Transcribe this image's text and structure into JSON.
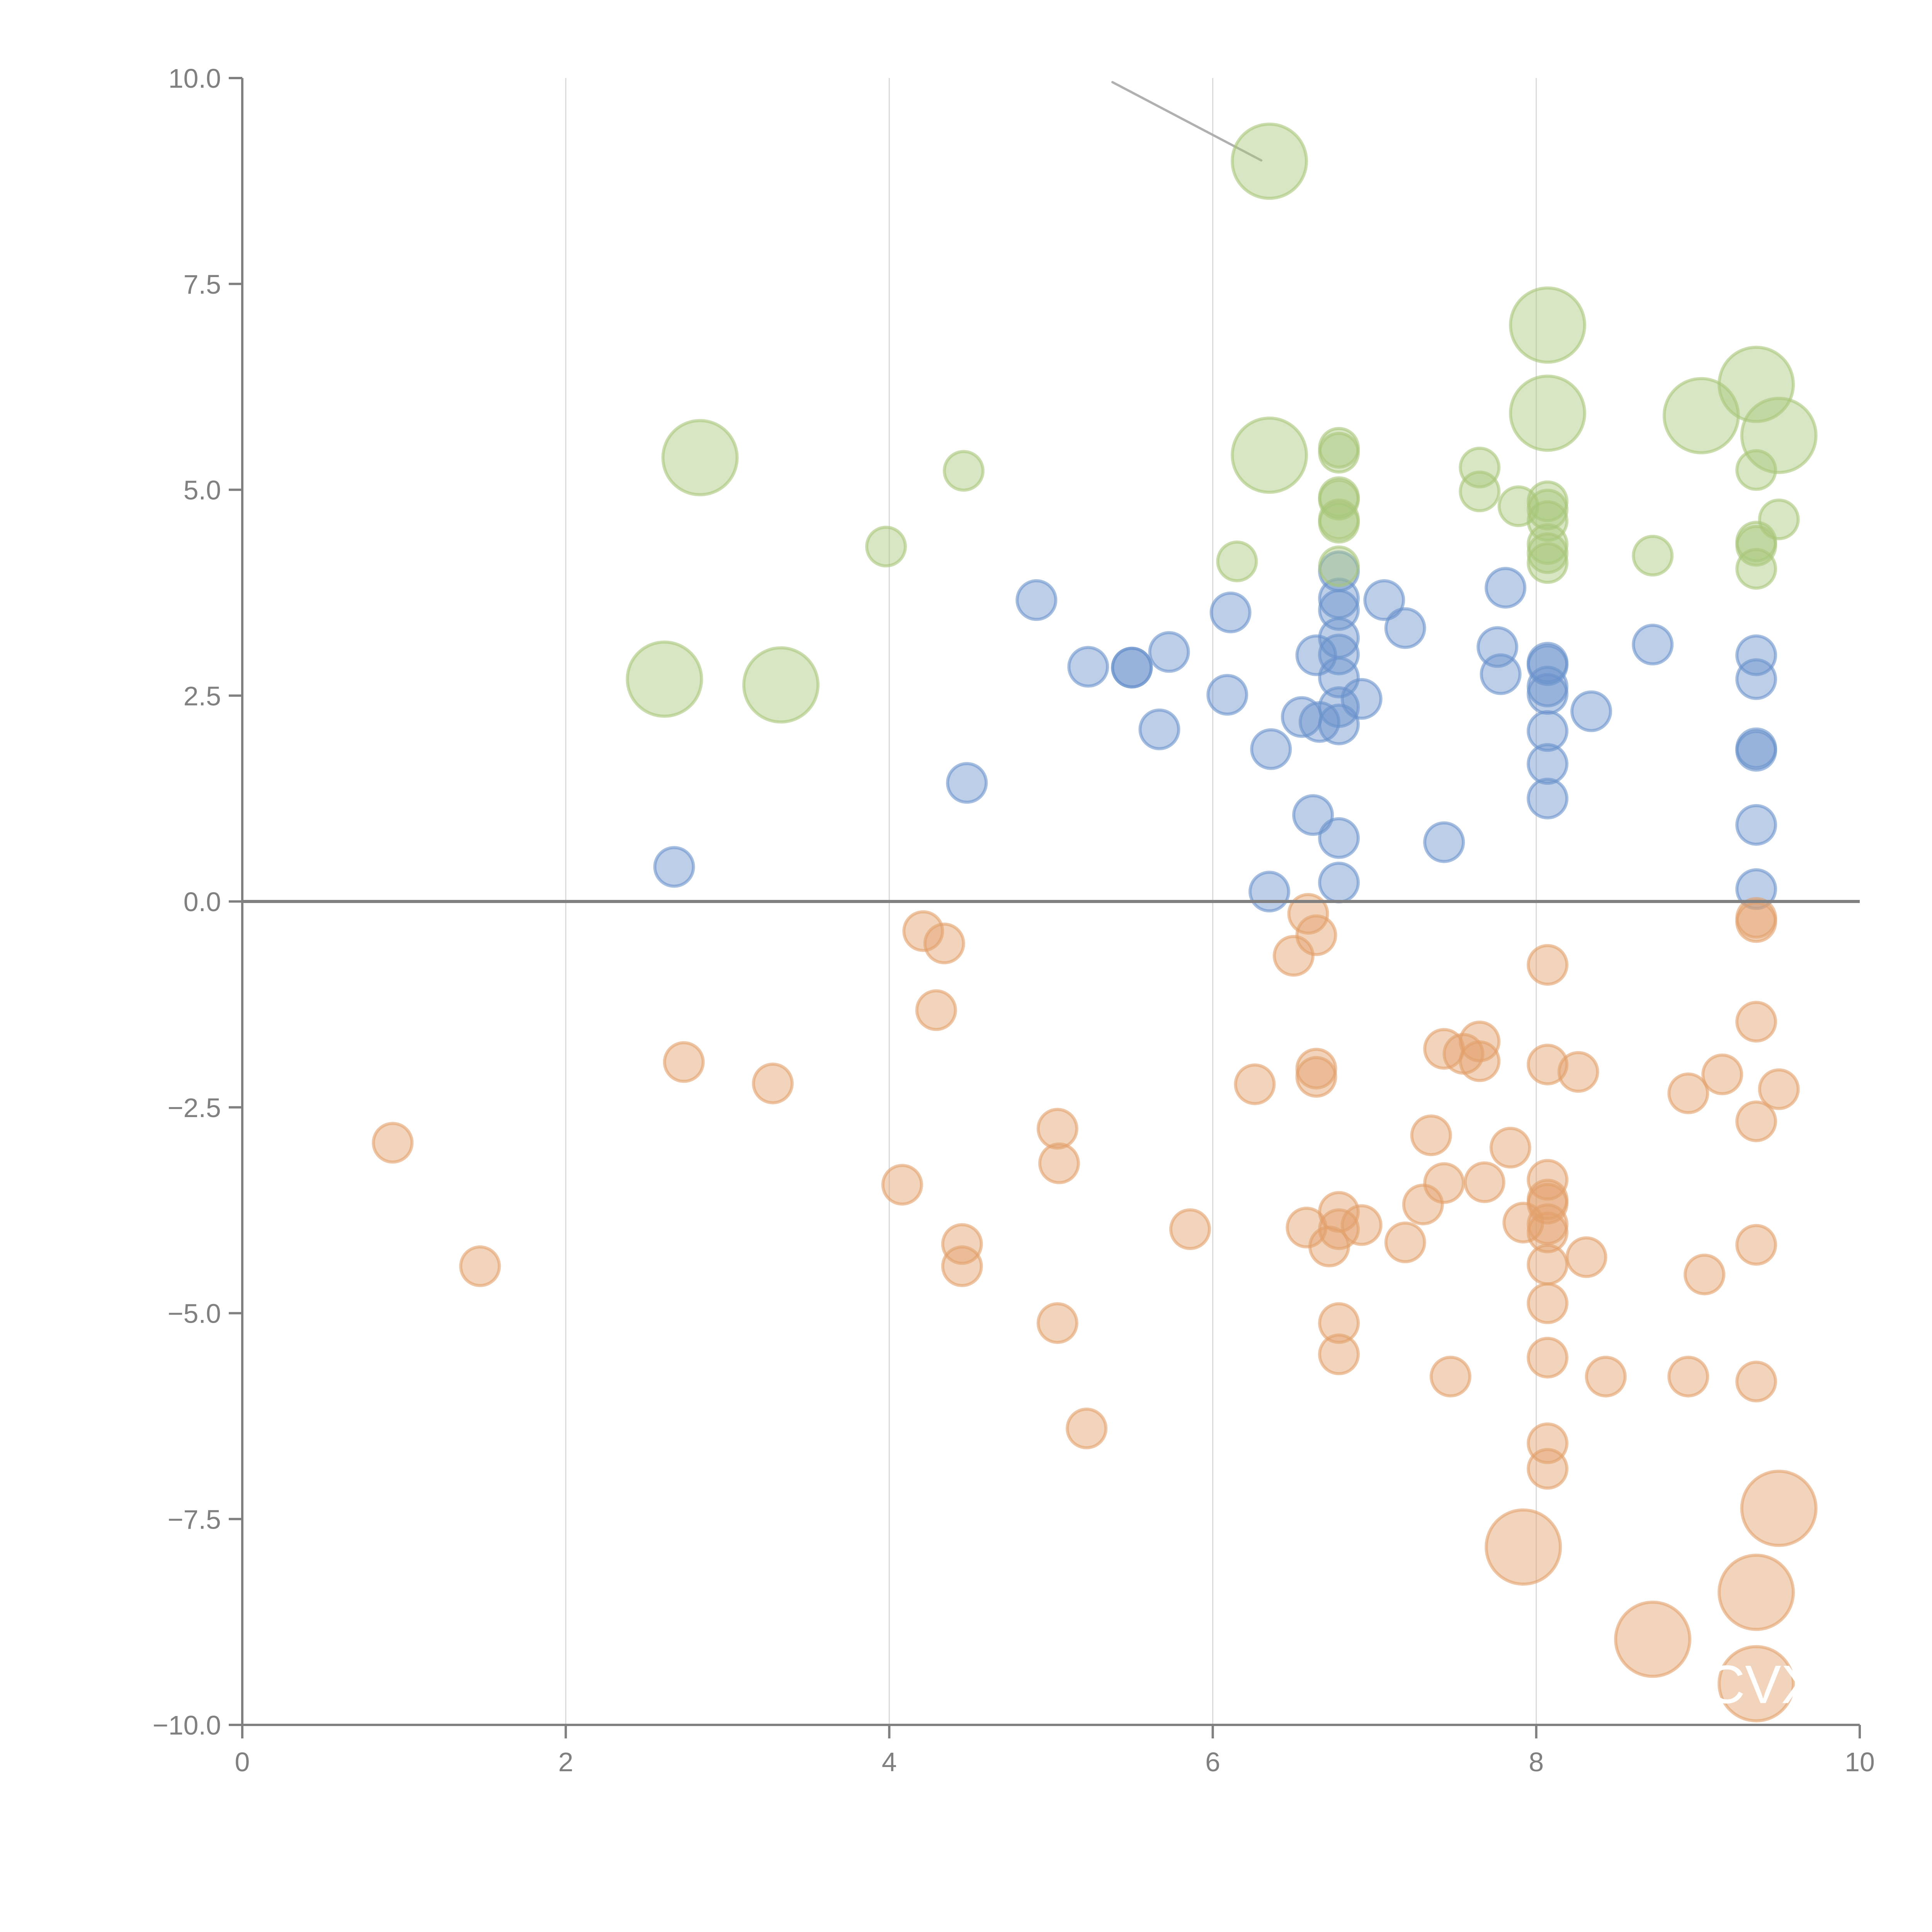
{
  "chart_data": {
    "type": "scatter",
    "title": "",
    "xlabel": "",
    "ylabel": "",
    "xlim": [
      0,
      10
    ],
    "ylim": [
      -10,
      10
    ],
    "x_ticks": [
      "0",
      "2",
      "4",
      "6",
      "8",
      "10"
    ],
    "y_ticks": [
      "-10.0",
      "-7.5",
      "-5.0",
      "-2.5",
      "0.0",
      "2.5",
      "5.0",
      "7.5",
      "10.0"
    ],
    "grid": "vertical",
    "zero_line": 0,
    "colors": {
      "blue": "#6a93cc",
      "orange": "#e3a06b",
      "green": "#a8c77a",
      "axis": "#808080",
      "grid": "#d9d9d9"
    },
    "annotation": {
      "label": "CVX",
      "x": 9.36,
      "y": -9.5
    },
    "series": [
      {
        "name": "blue",
        "size": "small",
        "points": [
          [
            2.67,
            0.42
          ],
          [
            4.48,
            1.44
          ],
          [
            4.91,
            3.66
          ],
          [
            5.23,
            2.85
          ],
          [
            5.5,
            2.84
          ],
          [
            5.5,
            2.84
          ],
          [
            5.73,
            3.03
          ],
          [
            5.67,
            2.09
          ],
          [
            6.09,
            2.51
          ],
          [
            6.11,
            3.51
          ],
          [
            6.36,
            1.85
          ],
          [
            6.35,
            0.12
          ],
          [
            6.55,
            2.24
          ],
          [
            6.62,
            1.05
          ],
          [
            6.64,
            2.99
          ],
          [
            6.66,
            2.18
          ],
          [
            6.78,
            4.01
          ],
          [
            6.78,
            3.68
          ],
          [
            6.78,
            3.54
          ],
          [
            6.78,
            3.2
          ],
          [
            6.78,
            3.0
          ],
          [
            6.78,
            2.72
          ],
          [
            6.78,
            2.36
          ],
          [
            6.78,
            2.15
          ],
          [
            6.78,
            0.77
          ],
          [
            6.78,
            0.23
          ],
          [
            6.92,
            2.46
          ],
          [
            7.06,
            3.66
          ],
          [
            7.19,
            3.32
          ],
          [
            7.43,
            0.72
          ],
          [
            7.76,
            3.09
          ],
          [
            7.78,
            2.76
          ],
          [
            7.81,
            3.81
          ],
          [
            8.07,
            2.9
          ],
          [
            8.07,
            2.87
          ],
          [
            8.07,
            2.61
          ],
          [
            8.07,
            2.52
          ],
          [
            8.07,
            2.07
          ],
          [
            8.07,
            1.67
          ],
          [
            8.07,
            1.25
          ],
          [
            8.34,
            2.31
          ],
          [
            8.72,
            3.12
          ],
          [
            9.36,
            2.99
          ],
          [
            9.36,
            2.7
          ],
          [
            9.36,
            1.86
          ],
          [
            9.36,
            1.83
          ],
          [
            9.36,
            0.93
          ],
          [
            9.36,
            0.15
          ]
        ]
      },
      {
        "name": "orange",
        "size": "small",
        "points": [
          [
            0.93,
            -2.93
          ],
          [
            1.47,
            -4.43
          ],
          [
            2.73,
            -1.95
          ],
          [
            3.28,
            -2.21
          ],
          [
            4.08,
            -3.44
          ],
          [
            4.21,
            -0.36
          ],
          [
            4.34,
            -0.51
          ],
          [
            4.29,
            -1.32
          ],
          [
            4.45,
            -4.16
          ],
          [
            4.45,
            -4.43
          ],
          [
            5.04,
            -2.76
          ],
          [
            5.05,
            -3.18
          ],
          [
            5.04,
            -5.12
          ],
          [
            5.22,
            -6.4
          ],
          [
            5.86,
            -3.98
          ],
          [
            6.26,
            -2.22
          ],
          [
            6.5,
            -0.66
          ],
          [
            6.59,
            -0.15
          ],
          [
            6.64,
            -0.41
          ],
          [
            6.64,
            -2.03
          ],
          [
            6.64,
            -2.13
          ],
          [
            6.58,
            -3.96
          ],
          [
            6.72,
            -4.19
          ],
          [
            6.78,
            -3.77
          ],
          [
            6.78,
            -3.98
          ],
          [
            6.78,
            -5.12
          ],
          [
            6.78,
            -5.5
          ],
          [
            6.92,
            -3.93
          ],
          [
            7.19,
            -4.14
          ],
          [
            7.3,
            -3.68
          ],
          [
            7.35,
            -2.84
          ],
          [
            7.43,
            -3.42
          ],
          [
            7.43,
            -1.79
          ],
          [
            7.55,
            -1.85
          ],
          [
            7.65,
            -1.7
          ],
          [
            7.65,
            -1.94
          ],
          [
            7.68,
            -3.41
          ],
          [
            7.47,
            -5.77
          ],
          [
            7.84,
            -2.99
          ],
          [
            7.92,
            -3.9
          ],
          [
            8.07,
            -0.77
          ],
          [
            8.07,
            -1.98
          ],
          [
            8.07,
            -3.38
          ],
          [
            8.07,
            -3.62
          ],
          [
            8.07,
            -3.67
          ],
          [
            8.07,
            -3.92
          ],
          [
            8.07,
            -4.02
          ],
          [
            8.07,
            -4.41
          ],
          [
            8.07,
            -4.88
          ],
          [
            8.07,
            -5.54
          ],
          [
            8.07,
            -6.58
          ],
          [
            8.07,
            -6.89
          ],
          [
            8.26,
            -2.07
          ],
          [
            8.31,
            -4.32
          ],
          [
            8.43,
            -5.77
          ],
          [
            8.94,
            -2.33
          ],
          [
            8.94,
            -5.77
          ],
          [
            9.04,
            -4.53
          ],
          [
            9.15,
            -2.1
          ],
          [
            9.36,
            -0.2
          ],
          [
            9.36,
            -0.25
          ],
          [
            9.36,
            -1.46
          ],
          [
            9.36,
            -2.67
          ],
          [
            9.36,
            -4.17
          ],
          [
            9.36,
            -5.83
          ],
          [
            9.5,
            -2.28
          ]
        ]
      },
      {
        "name": "orange-large",
        "size": "large",
        "points": [
          [
            7.92,
            -7.84
          ],
          [
            8.72,
            -8.96
          ],
          [
            9.36,
            -8.39
          ],
          [
            9.36,
            -9.5
          ],
          [
            9.5,
            -7.37
          ]
        ]
      },
      {
        "name": "green",
        "size": "small",
        "points": [
          [
            3.98,
            4.31
          ],
          [
            4.46,
            5.23
          ],
          [
            6.15,
            4.13
          ],
          [
            6.78,
            5.51
          ],
          [
            6.78,
            5.45
          ],
          [
            6.78,
            4.91
          ],
          [
            6.78,
            4.88
          ],
          [
            6.78,
            4.64
          ],
          [
            6.78,
            4.6
          ],
          [
            6.78,
            4.07
          ],
          [
            7.65,
            5.27
          ],
          [
            7.65,
            4.98
          ],
          [
            7.89,
            4.8
          ],
          [
            8.07,
            4.86
          ],
          [
            8.07,
            4.76
          ],
          [
            8.07,
            4.62
          ],
          [
            8.07,
            4.34
          ],
          [
            8.07,
            4.23
          ],
          [
            8.07,
            4.11
          ],
          [
            8.72,
            4.2
          ],
          [
            9.36,
            5.24
          ],
          [
            9.36,
            4.37
          ],
          [
            9.36,
            4.32
          ],
          [
            9.36,
            4.04
          ],
          [
            9.5,
            4.64
          ]
        ]
      },
      {
        "name": "green-large",
        "size": "large",
        "points": [
          [
            2.83,
            5.39
          ],
          [
            2.61,
            2.7
          ],
          [
            3.33,
            2.63
          ],
          [
            6.35,
            8.99
          ],
          [
            6.35,
            5.42
          ],
          [
            8.07,
            7.0
          ],
          [
            8.07,
            5.93
          ],
          [
            9.02,
            5.9
          ],
          [
            9.36,
            6.28
          ],
          [
            9.5,
            5.66
          ]
        ]
      }
    ]
  }
}
